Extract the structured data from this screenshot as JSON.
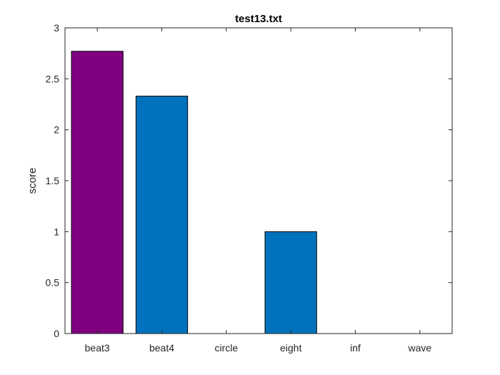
{
  "chart_data": {
    "type": "bar",
    "title": "test13.txt",
    "xlabel": "",
    "ylabel": "score",
    "categories": [
      "beat3",
      "beat4",
      "circle",
      "eight",
      "inf",
      "wave"
    ],
    "values": [
      2.77,
      2.33,
      0,
      1.0,
      0,
      0
    ],
    "bar_colors": [
      "#800080",
      "#0072BD",
      "#0072BD",
      "#0072BD",
      "#0072BD",
      "#0072BD"
    ],
    "ylim": [
      0,
      3
    ],
    "yticks": [
      0,
      0.5,
      1,
      1.5,
      2,
      2.5,
      3
    ],
    "ytick_labels": [
      "0",
      "0.5",
      "1",
      "1.5",
      "2",
      "2.5",
      "3"
    ],
    "grid": false,
    "legend": "none"
  }
}
